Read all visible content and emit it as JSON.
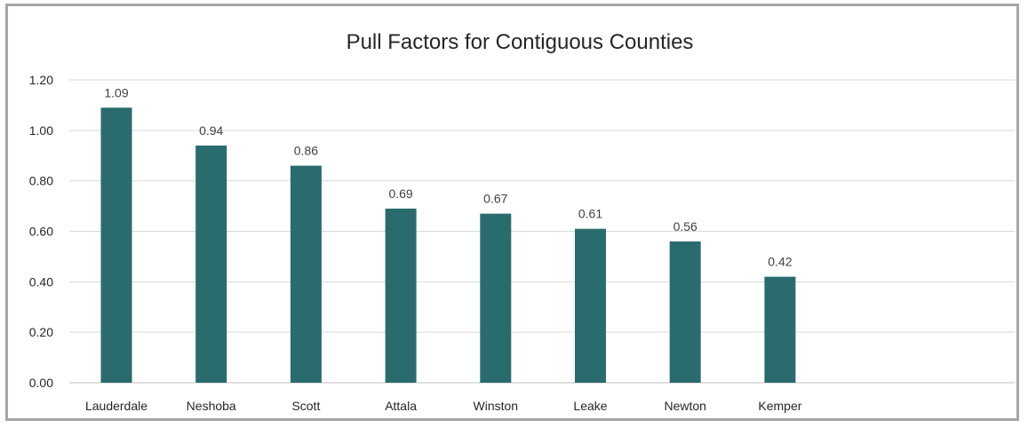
{
  "chart_data": {
    "type": "bar",
    "title": "Pull Factors for Contiguous Counties",
    "categories": [
      "Lauderdale",
      "Neshoba",
      "Scott",
      "Attala",
      "Winston",
      "Leake",
      "Newton",
      "Kemper"
    ],
    "values": [
      1.09,
      0.94,
      0.86,
      0.69,
      0.67,
      0.61,
      0.56,
      0.42
    ],
    "data_labels": [
      "1.09",
      "0.94",
      "0.86",
      "0.69",
      "0.67",
      "0.61",
      "0.56",
      "0.42"
    ],
    "y_ticks": [
      0,
      0.2,
      0.4,
      0.6,
      0.8,
      1.0,
      1.2
    ],
    "y_tick_labels": [
      "0.00",
      "0.20",
      "0.40",
      "0.60",
      "0.80",
      "1.00",
      "1.20"
    ],
    "ylim": [
      0,
      1.2
    ],
    "xlabel": "",
    "ylabel": "",
    "grid": true,
    "legend": "none",
    "bar_color": "#2a6b6e"
  }
}
